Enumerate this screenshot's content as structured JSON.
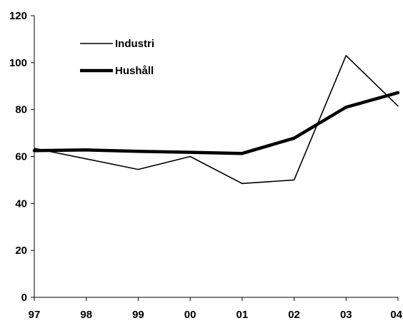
{
  "chart_data": {
    "type": "line",
    "categories": [
      "97",
      "98",
      "99",
      "00",
      "01",
      "02",
      "03",
      "04"
    ],
    "ylim": [
      0,
      120
    ],
    "y_ticks": [
      "0",
      "20",
      "40",
      "60",
      "80",
      "100",
      "120"
    ],
    "grid": false,
    "legend_position": "top-left",
    "series": [
      {
        "name": "Industri",
        "values": [
          63.5,
          59.0,
          54.5,
          60.0,
          48.5,
          50.0,
          103.0,
          81.5
        ],
        "color": "#000000",
        "style": "thin"
      },
      {
        "name": "Hushåll",
        "values": [
          62.5,
          62.8,
          62.2,
          61.8,
          61.3,
          67.8,
          81.0,
          87.2
        ],
        "color": "#000000",
        "style": "thick"
      }
    ]
  }
}
